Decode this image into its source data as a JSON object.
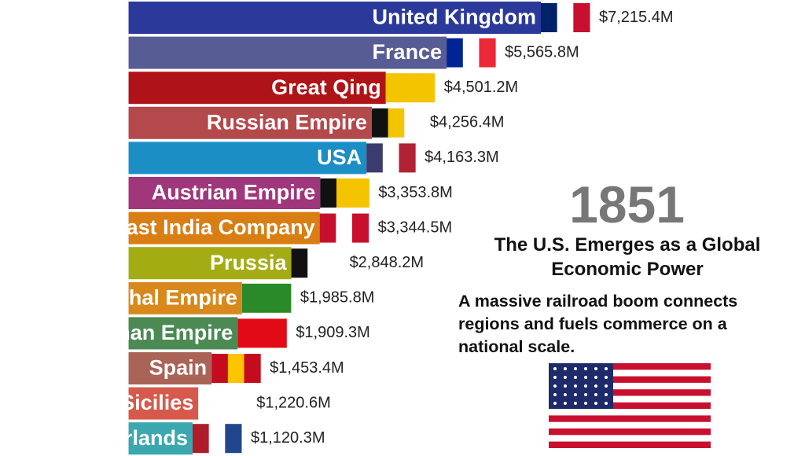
{
  "chart_data": {
    "type": "bar",
    "orientation": "horizontal",
    "categories": [
      "United Kingdom",
      "France",
      "Great Qing",
      "Russian Empire",
      "USA",
      "Austrian Empire",
      "East India Company",
      "Prussia",
      "Mughal Empire",
      "Ottoman Empire",
      "Spain",
      "Two Sicilies",
      "Netherlands"
    ],
    "values": [
      7215.4,
      5565.8,
      4501.2,
      4256.4,
      4163.3,
      3353.8,
      3344.5,
      2848.2,
      1985.8,
      1909.3,
      1453.4,
      1220.6,
      1120.3
    ],
    "value_labels": [
      "$7,215.4M",
      "$5,565.8M",
      "$4,501.2M",
      "$4,256.4M",
      "$4,163.3M",
      "$3,353.8M",
      "$3,344.5M",
      "$2,848.2M",
      "$1,985.8M",
      "$1,909.3M",
      "$1,453.4M",
      "$1,220.6M",
      "$1,120.3M"
    ],
    "colors": [
      "#2b3a9a",
      "#575c94",
      "#b01317",
      "#b4494b",
      "#1b8ec6",
      "#a0367c",
      "#d97e13",
      "#a3ad13",
      "#d8891c",
      "#4b8a53",
      "#a96357",
      "#d6594b",
      "#3ba7ae"
    ],
    "xlim": [
      -2250,
      7215.4
    ],
    "year": "1851",
    "headline": "The U.S. Emerges as a Global Economic Power",
    "description": "A massive railroad boom connects regions and fuels commerce on a national scale."
  }
}
